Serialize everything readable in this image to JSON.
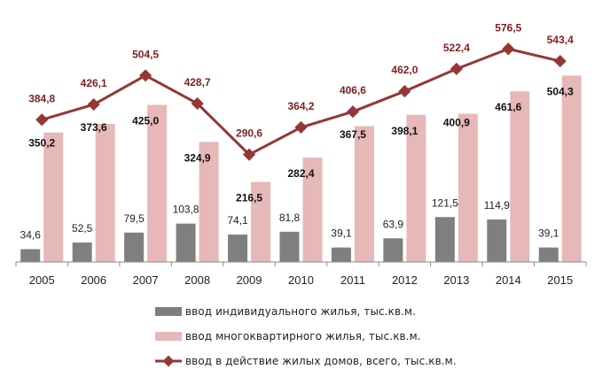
{
  "chart_data": {
    "type": "bar+line",
    "categories": [
      "2005",
      "2006",
      "2007",
      "2008",
      "2009",
      "2010",
      "2011",
      "2012",
      "2013",
      "2014",
      "2015"
    ],
    "series": [
      {
        "name": "ввод индивидуального  жилья, тыс.кв.м.",
        "type": "bar",
        "color": "#7f7f7f",
        "values": [
          34.6,
          52.5,
          79.5,
          103.8,
          74.1,
          81.8,
          39.1,
          63.9,
          121.5,
          114.9,
          39.1
        ],
        "labels": [
          "34,6",
          "52,5",
          "79,5",
          "103,8",
          "74,1",
          "81,8",
          "39,1",
          "63,9",
          "121,5",
          "114,9",
          "39,1"
        ]
      },
      {
        "name": "ввод многоквартирного жилья, тыс.кв.м.",
        "type": "bar",
        "color": "#e6b8b7",
        "values": [
          350.2,
          373.6,
          425.0,
          324.9,
          216.5,
          282.4,
          367.5,
          398.1,
          400.9,
          461.6,
          504.3
        ],
        "labels": [
          "350,2",
          "373,6",
          "425,0",
          "324,9",
          "216,5",
          "282,4",
          "367,5",
          "398,1",
          "400,9",
          "461,6",
          "504,3"
        ]
      },
      {
        "name": "ввод в действие жилых домов, всего, тыс.кв.м.",
        "type": "line",
        "color": "#953735",
        "values": [
          384.8,
          426.1,
          504.5,
          428.7,
          290.6,
          364.2,
          406.6,
          462.0,
          522.4,
          576.5,
          543.4
        ],
        "labels": [
          "384,8",
          "426,1",
          "504,5",
          "428,7",
          "290,6",
          "364,2",
          "406,6",
          "462,0",
          "522,4",
          "576,5",
          "543,4"
        ]
      }
    ],
    "ylim": [
      0,
      650
    ],
    "grid": false,
    "legend_position": "bottom"
  }
}
